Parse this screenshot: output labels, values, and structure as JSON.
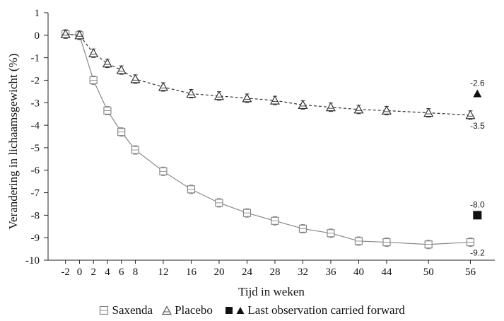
{
  "chart_data": {
    "type": "line",
    "title": "",
    "xlabel": "Tijd in weken",
    "ylabel": "Verandering in lichaamsgewicht (%)",
    "ylim": [
      -10,
      1
    ],
    "yticks": [
      "1",
      "0",
      "-1",
      "-2",
      "-3",
      "-4",
      "-5",
      "-6",
      "-7",
      "-8",
      "-9",
      "-10"
    ],
    "x": [
      -2,
      0,
      2,
      4,
      6,
      8,
      12,
      16,
      20,
      24,
      28,
      32,
      36,
      40,
      44,
      50,
      56
    ],
    "xtick_labels": [
      "-2",
      "0",
      "2",
      "4",
      "6",
      "8",
      "12",
      "16",
      "20",
      "24",
      "28",
      "32",
      "36",
      "40",
      "44",
      "50",
      "56"
    ],
    "grid": false,
    "legend_position": "bottom",
    "series": [
      {
        "name": "Saxenda",
        "color": "#888888",
        "line_style": "solid",
        "marker": "square-open",
        "values": [
          0.05,
          0.0,
          -2.0,
          -3.35,
          -4.3,
          -5.1,
          -6.05,
          -6.85,
          -7.45,
          -7.9,
          -8.25,
          -8.6,
          -8.8,
          -9.15,
          -9.2,
          -9.3,
          -9.2
        ]
      },
      {
        "name": "Placebo",
        "color": "#333333",
        "line_style": "dashed",
        "marker": "triangle-open",
        "values": [
          0.05,
          0.0,
          -0.8,
          -1.25,
          -1.55,
          -1.95,
          -2.3,
          -2.6,
          -2.7,
          -2.8,
          -2.9,
          -3.1,
          -3.2,
          -3.3,
          -3.35,
          -3.45,
          -3.55
        ]
      }
    ],
    "locf": [
      {
        "marker": "square-filled",
        "x": 57,
        "value": -8.0,
        "label": "-8.0"
      },
      {
        "marker": "triangle-filled",
        "x": 57,
        "value": -2.6,
        "label": "-2.6"
      }
    ],
    "end_labels": [
      {
        "series": "Saxenda",
        "label": "-9.2"
      },
      {
        "series": "Placebo",
        "label": "-3.5"
      }
    ]
  },
  "legend": {
    "saxenda": "Saxenda",
    "placebo": "Placebo",
    "locf": "Last observation carried forward"
  }
}
